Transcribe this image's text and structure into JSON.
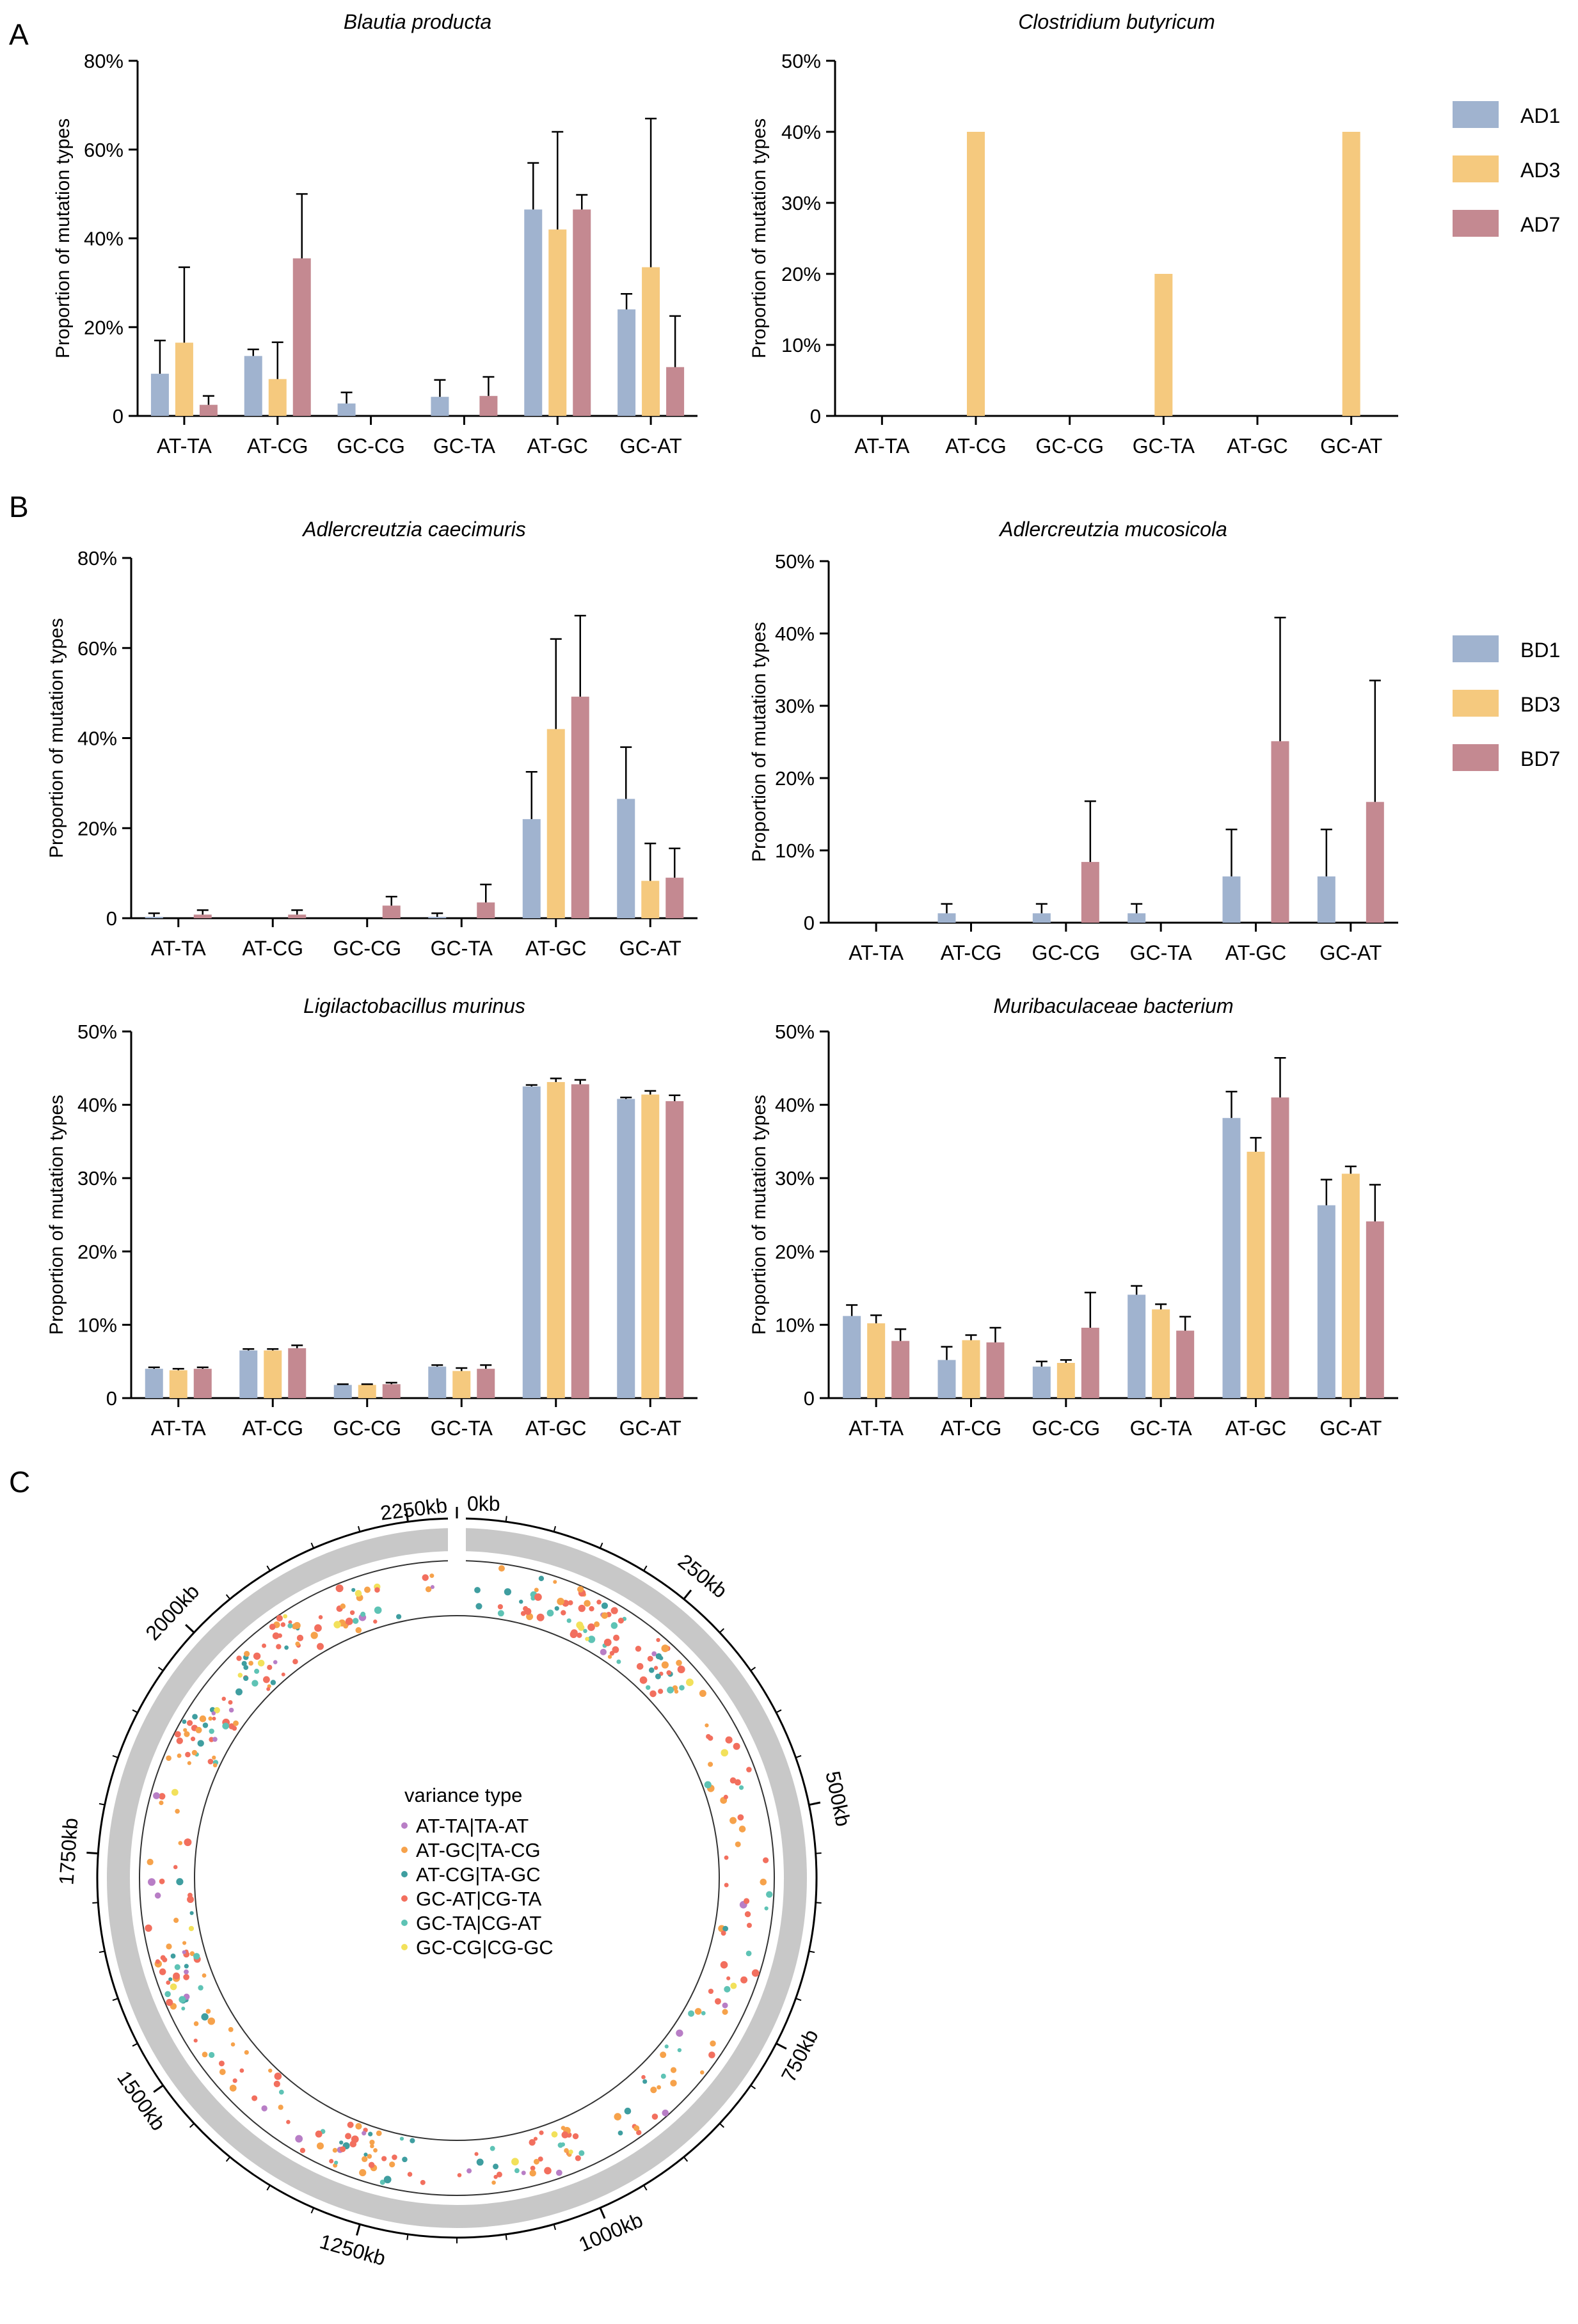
{
  "colors": {
    "AD1": "#a0b3cf",
    "AD3": "#f5c97e",
    "AD7": "#c48991",
    "BD1": "#a0b3cf",
    "BD3": "#f5c97e",
    "BD7": "#c48991",
    "ring": "#c8c8c8",
    "var_types": [
      "#b87ec6",
      "#f6a24b",
      "#3f9ea0",
      "#f26f5e",
      "#5ec3b5",
      "#f2e15b"
    ]
  },
  "panel_labels": {
    "A": "A",
    "B": "B",
    "C": "C"
  },
  "shared": {
    "ylabel": "Proportion of mutation types",
    "categories": [
      "AT-TA",
      "AT-CG",
      "GC-CG",
      "GC-TA",
      "AT-GC",
      "GC-AT"
    ]
  },
  "legend_A": [
    "AD1",
    "AD3",
    "AD7"
  ],
  "legend_B": [
    "BD1",
    "BD3",
    "BD7"
  ],
  "chart_data": [
    {
      "id": "blautia",
      "type": "bar",
      "title": "Blautia producta",
      "ylabel": "Proportion of mutation types",
      "categories": [
        "AT-TA",
        "AT-CG",
        "GC-CG",
        "GC-TA",
        "AT-GC",
        "GC-AT"
      ],
      "ylim": [
        0,
        80
      ],
      "yticks": [
        0,
        20,
        40,
        60,
        80
      ],
      "yticklabels": [
        "0",
        "20%",
        "40%",
        "60%",
        "80%"
      ],
      "series": [
        {
          "name": "AD1",
          "values": [
            9.5,
            13.5,
            2.8,
            4.3,
            46.5,
            24
          ],
          "err": [
            7.5,
            1.5,
            2.5,
            3.8,
            10.5,
            3.5
          ]
        },
        {
          "name": "AD3",
          "values": [
            16.5,
            8.3,
            0,
            0,
            42,
            33.5
          ],
          "err": [
            17,
            8.3,
            0,
            0,
            22,
            33.5
          ]
        },
        {
          "name": "AD7",
          "values": [
            2.5,
            35.5,
            0,
            4.5,
            46.5,
            11
          ],
          "err": [
            2,
            14.5,
            0,
            4.3,
            3.3,
            11.5
          ]
        }
      ]
    },
    {
      "id": "clostridium",
      "type": "bar",
      "title": "Clostridium butyricum",
      "ylabel": "Proportion of mutation types",
      "categories": [
        "AT-TA",
        "AT-CG",
        "GC-CG",
        "GC-TA",
        "AT-GC",
        "GC-AT"
      ],
      "ylim": [
        0,
        50
      ],
      "yticks": [
        0,
        10,
        20,
        30,
        40,
        50
      ],
      "yticklabels": [
        "0",
        "10%",
        "20%",
        "30%",
        "40%",
        "50%"
      ],
      "series": [
        {
          "name": "AD1",
          "values": [
            0,
            0,
            0,
            0,
            0,
            0
          ],
          "err": [
            0,
            0,
            0,
            0,
            0,
            0
          ]
        },
        {
          "name": "AD3",
          "values": [
            0,
            40,
            0,
            20,
            0,
            40
          ],
          "err": [
            0,
            0,
            0,
            0,
            0,
            0
          ]
        },
        {
          "name": "AD7",
          "values": [
            0,
            0,
            0,
            0,
            0,
            0
          ],
          "err": [
            0,
            0,
            0,
            0,
            0,
            0
          ]
        }
      ]
    },
    {
      "id": "adler-caec",
      "type": "bar",
      "title": "Adlercreutzia caecimuris",
      "ylabel": "Proportion of mutation types",
      "categories": [
        "AT-TA",
        "AT-CG",
        "GC-CG",
        "GC-TA",
        "AT-GC",
        "GC-AT"
      ],
      "ylim": [
        0,
        80
      ],
      "yticks": [
        0,
        20,
        40,
        60,
        80
      ],
      "yticklabels": [
        "0",
        "20%",
        "40%",
        "60%",
        "80%"
      ],
      "series": [
        {
          "name": "BD1",
          "values": [
            0.3,
            0,
            0,
            0.3,
            22,
            26.5
          ],
          "err": [
            0.8,
            0,
            0,
            0.8,
            10.5,
            11.5
          ]
        },
        {
          "name": "BD3",
          "values": [
            0,
            0,
            0,
            0,
            42,
            8.3
          ],
          "err": [
            0,
            0,
            0,
            0,
            20,
            8.3
          ]
        },
        {
          "name": "BD7",
          "values": [
            0.8,
            0.8,
            2.8,
            3.5,
            49.2,
            9
          ],
          "err": [
            1,
            1,
            2,
            4,
            18,
            6.5
          ]
        }
      ]
    },
    {
      "id": "adler-muco",
      "type": "bar",
      "title": "Adlercreutzia mucosicola",
      "ylabel": "Proportion of mutation types",
      "categories": [
        "AT-TA",
        "AT-CG",
        "GC-CG",
        "GC-TA",
        "AT-GC",
        "GC-AT"
      ],
      "ylim": [
        0,
        50
      ],
      "yticks": [
        0,
        10,
        20,
        30,
        40,
        50
      ],
      "yticklabels": [
        "0",
        "10%",
        "20%",
        "30%",
        "40%",
        "50%"
      ],
      "series": [
        {
          "name": "BD1",
          "values": [
            0,
            1.3,
            1.3,
            1.3,
            6.4,
            6.4
          ],
          "err": [
            0,
            1.3,
            1.3,
            1.3,
            6.5,
            6.5
          ]
        },
        {
          "name": "BD3",
          "values": [
            0,
            0,
            0,
            0,
            0,
            0
          ],
          "err": [
            0,
            0,
            0,
            0,
            0,
            0
          ]
        },
        {
          "name": "BD7",
          "values": [
            0,
            0,
            8.4,
            0,
            25.1,
            16.7
          ],
          "err": [
            0,
            0,
            8.4,
            0,
            17.1,
            16.8
          ]
        }
      ]
    },
    {
      "id": "ligilacto",
      "type": "bar",
      "title": "Ligilactobacillus murinus",
      "ylabel": "Proportion of mutation types",
      "categories": [
        "AT-TA",
        "AT-CG",
        "GC-CG",
        "GC-TA",
        "AT-GC",
        "GC-AT"
      ],
      "ylim": [
        0,
        50
      ],
      "yticks": [
        0,
        10,
        20,
        30,
        40,
        50
      ],
      "yticklabels": [
        "0",
        "10%",
        "20%",
        "30%",
        "40%",
        "50%"
      ],
      "series": [
        {
          "name": "BD1",
          "values": [
            4,
            6.5,
            1.8,
            4.3,
            42.5,
            40.8
          ],
          "err": [
            0.2,
            0.2,
            0.1,
            0.2,
            0.2,
            0.2
          ]
        },
        {
          "name": "BD3",
          "values": [
            3.8,
            6.5,
            1.8,
            3.7,
            43.1,
            41.4
          ],
          "err": [
            0.2,
            0.2,
            0.1,
            0.4,
            0.5,
            0.5
          ]
        },
        {
          "name": "BD7",
          "values": [
            4,
            6.8,
            1.9,
            4,
            42.8,
            40.5
          ],
          "err": [
            0.2,
            0.4,
            0.2,
            0.5,
            0.6,
            0.8
          ]
        }
      ]
    },
    {
      "id": "muribac",
      "type": "bar",
      "title": "Muribaculaceae bacterium",
      "ylabel": "Proportion of mutation types",
      "categories": [
        "AT-TA",
        "AT-CG",
        "GC-CG",
        "GC-TA",
        "AT-GC",
        "GC-AT"
      ],
      "ylim": [
        0,
        50
      ],
      "yticks": [
        0,
        10,
        20,
        30,
        40,
        50
      ],
      "yticklabels": [
        "0",
        "10%",
        "20%",
        "30%",
        "40%",
        "50%"
      ],
      "series": [
        {
          "name": "BD1",
          "values": [
            11.2,
            5.2,
            4.3,
            14.1,
            38.2,
            26.3
          ],
          "err": [
            1.5,
            1.8,
            0.7,
            1.2,
            3.6,
            3.5
          ]
        },
        {
          "name": "BD3",
          "values": [
            10.2,
            7.9,
            4.8,
            12.1,
            33.6,
            30.6
          ],
          "err": [
            1.1,
            0.7,
            0.4,
            0.7,
            1.9,
            1
          ]
        },
        {
          "name": "BD7",
          "values": [
            7.8,
            7.6,
            9.6,
            9.2,
            41,
            24.1
          ],
          "err": [
            1.6,
            2,
            4.8,
            1.9,
            5.4,
            5
          ]
        }
      ]
    }
  ],
  "circos": {
    "ticks": [
      "0kb",
      "250kb",
      "500kb",
      "750kb",
      "1000kb",
      "1250kb",
      "1500kb",
      "1750kb",
      "2000kb",
      "2250kb"
    ],
    "legend_title": "variance type",
    "legend_items": [
      "AT-TA|TA-AT",
      "AT-GC|TA-CG",
      "AT-CG|TA-GC",
      "GC-AT|CG-TA",
      "GC-TA|CG-AT",
      "GC-CG|CG-GC"
    ]
  }
}
